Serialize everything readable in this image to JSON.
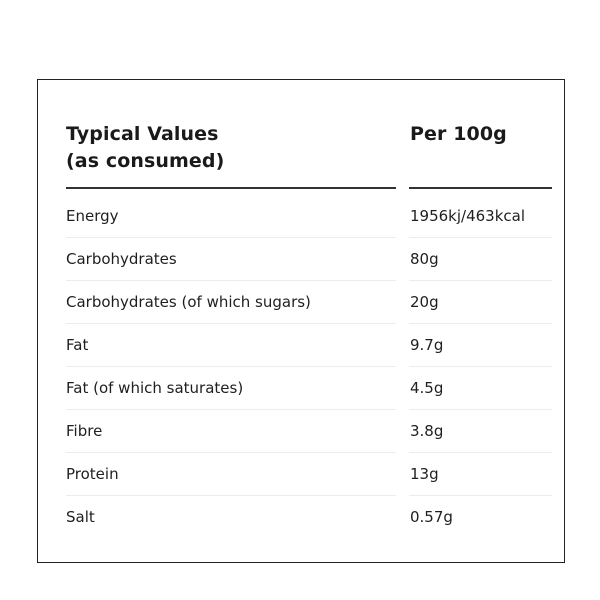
{
  "table": {
    "header": {
      "left_line1": "Typical Values",
      "left_line2": "(as consumed)",
      "right": "Per 100g"
    },
    "rows": [
      {
        "name": "Energy",
        "value": "1956kj/463kcal"
      },
      {
        "name": "Carbohydrates",
        "value": "80g"
      },
      {
        "name": "Carbohydrates (of which sugars)",
        "value": "20g"
      },
      {
        "name": "Fat",
        "value": "9.7g"
      },
      {
        "name": "Fat (of which saturates)",
        "value": "4.5g"
      },
      {
        "name": "Fibre",
        "value": "3.8g"
      },
      {
        "name": "Protein",
        "value": "13g"
      },
      {
        "name": "Salt",
        "value": "0.57g"
      }
    ]
  }
}
